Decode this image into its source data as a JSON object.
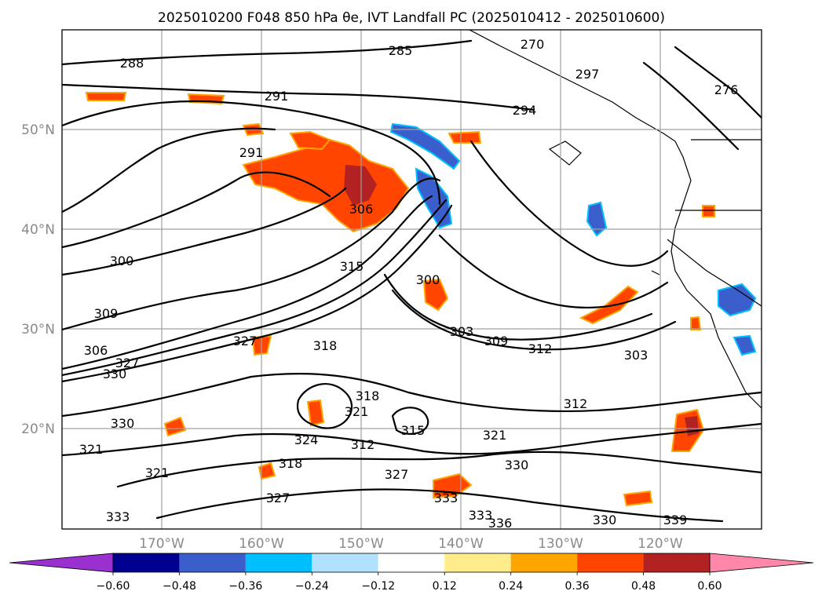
{
  "title": "2025010200 F048 850 hPa θe, IVT Landfall PC (2025010412 - 2025010600)",
  "lon_labels": [
    "170°W",
    "160°W",
    "150°W",
    "140°W",
    "130°W",
    "120°W"
  ],
  "lat_labels": [
    "50°N",
    "40°N",
    "30°N",
    "20°N"
  ],
  "colorbar": {
    "ticks": [
      "−0.60",
      "−0.48",
      "−0.36",
      "−0.24",
      "−0.12",
      "0.12",
      "0.24",
      "0.36",
      "0.48",
      "0.60"
    ],
    "colors": [
      "#9b30d0",
      "#000090",
      "#3a5fcd",
      "#00bfff",
      "#b0e2ff",
      "#ffffff",
      "#ffec8b",
      "#ffa500",
      "#ff4500",
      "#b22222",
      "#ff88aa"
    ]
  },
  "contour_labels": [
    "288",
    "285",
    "291",
    "270",
    "294",
    "276",
    "297",
    "291",
    "306",
    "300",
    "315",
    "300",
    "309",
    "303",
    "309",
    "318",
    "327",
    "312",
    "303",
    "306",
    "327",
    "330",
    "318",
    "321",
    "312",
    "330",
    "321",
    "324",
    "321",
    "312",
    "315",
    "318",
    "327",
    "330",
    "321",
    "327",
    "333",
    "333",
    "336",
    "339",
    "333",
    "330"
  ]
}
